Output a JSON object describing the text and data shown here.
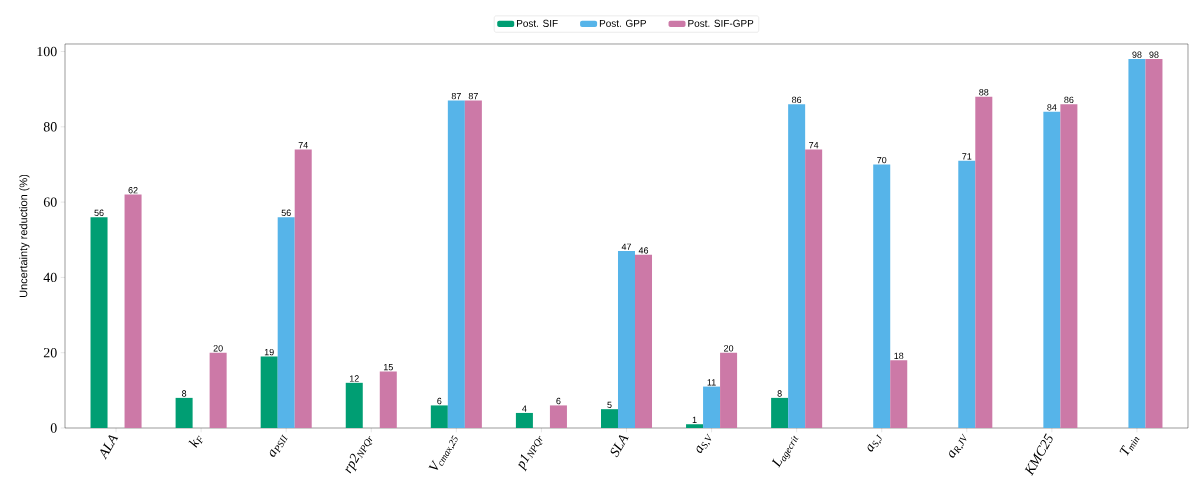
{
  "chart_data": {
    "type": "bar",
    "ylabel": "Uncertainty reduction (%)",
    "categories": [
      "ALA",
      "k$_{F}$",
      "a$_{PSII}$",
      "rp2$_{NPQr}$",
      "V$_{cmax,25}$",
      "p1$_{NPQr}$",
      "SLA",
      "a$_{S,V}$",
      "L$_{agecrit}$",
      "a$_{S,J}$",
      "a$_{R,JV}$",
      "KMC25",
      "T$_{min}$"
    ],
    "series": [
      {
        "name": "Post. SIF",
        "color": "#009e73",
        "values": [
          56,
          8,
          19,
          12,
          6,
          4,
          5,
          1,
          8,
          null,
          null,
          null,
          null
        ]
      },
      {
        "name": "Post. GPP",
        "color": "#56b4e9",
        "values": [
          null,
          null,
          56,
          null,
          87,
          null,
          47,
          11,
          86,
          70,
          71,
          84,
          98
        ]
      },
      {
        "name": "Post. SIF-GPP",
        "color": "#cc79a7",
        "values": [
          62,
          20,
          74,
          15,
          87,
          6,
          46,
          20,
          74,
          18,
          88,
          86,
          98
        ]
      }
    ],
    "ylim": [
      0,
      102
    ],
    "yticks": [
      0,
      20,
      40,
      60,
      80,
      100
    ],
    "data_labels": true,
    "legend": "top",
    "grid": false
  }
}
